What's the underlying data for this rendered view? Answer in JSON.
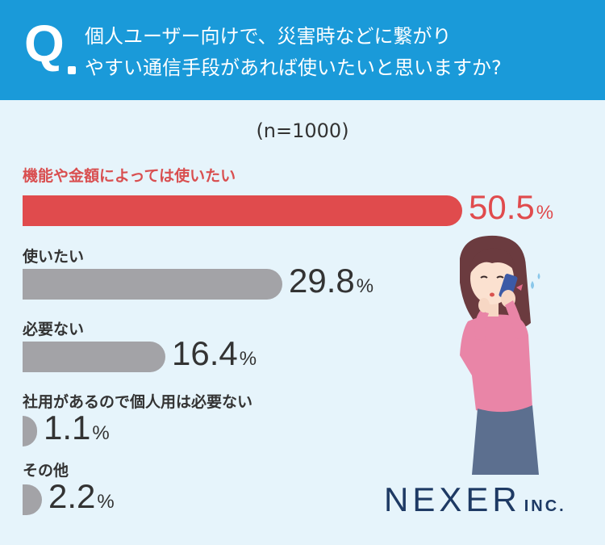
{
  "question": {
    "mark": "Q",
    "line1": "個人ユーザー向けで、災害時などに繋がり",
    "line2": "やすい通信手段があれば使いたいと思いますか?"
  },
  "sample_size": "(n=1000)",
  "brand": {
    "main": "NEXER",
    "sub": "INC."
  },
  "colors": {
    "header": "#1a9ad9",
    "highlight": "#e04b4d",
    "bar": "#a3a3a7",
    "background": "#e6f4fb"
  },
  "chart_data": {
    "type": "bar",
    "orientation": "horizontal",
    "categories": [
      "機能や金額によっては使いたい",
      "使いたい",
      "必要ない",
      "社用があるので個人用は必要ない",
      "その他"
    ],
    "values": [
      50.5,
      29.8,
      16.4,
      1.1,
      2.2
    ],
    "value_labels": [
      "50.5",
      "29.8",
      "16.4",
      "1.1",
      "2.2"
    ],
    "unit": "%",
    "highlighted_index": 0,
    "xlim": [
      0,
      100
    ]
  }
}
